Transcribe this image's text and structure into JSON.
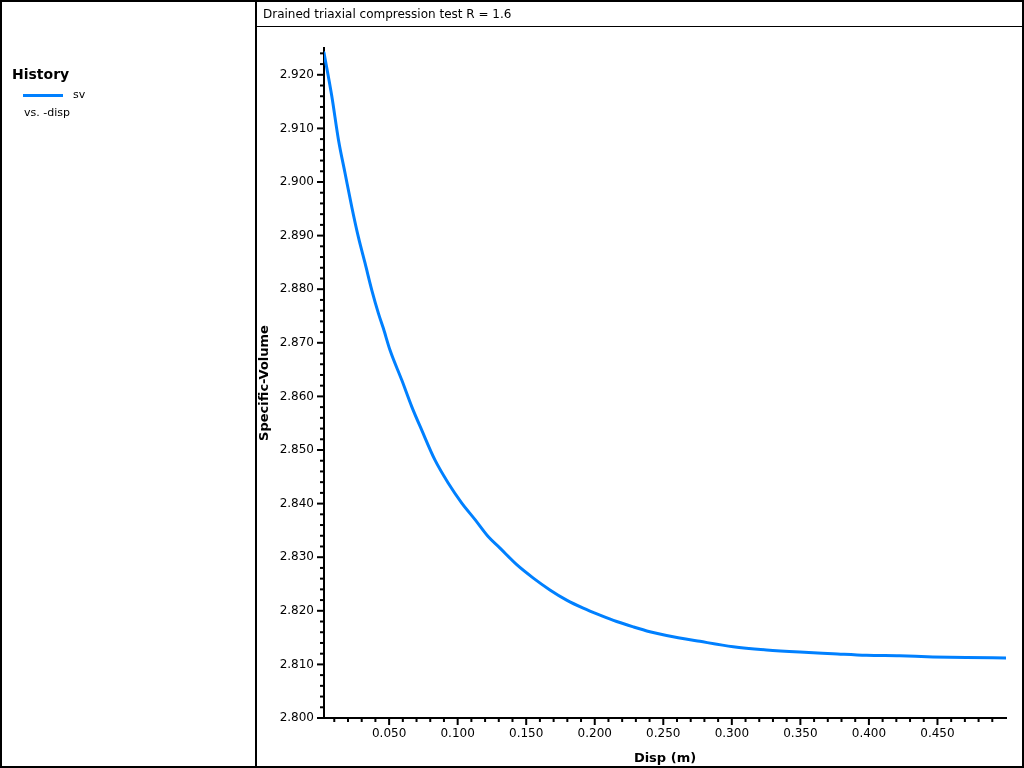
{
  "chart_data": {
    "type": "line",
    "title": "Drained triaxial compression test R = 1.6",
    "xlabel": "Disp (m)",
    "ylabel": "Specific-Volume",
    "legend_title": "History",
    "legend": "left",
    "marker": "none",
    "line_style": "solid",
    "annotations": [
      "vs. -disp"
    ],
    "xlim": [
      0.0025,
      0.5
    ],
    "ylim": [
      2.8,
      2.925
    ],
    "xticks": [
      {
        "value": 0.01,
        "label": null
      },
      {
        "value": 0.02,
        "label": null
      },
      {
        "value": 0.03,
        "label": null
      },
      {
        "value": 0.04,
        "label": null
      },
      {
        "value": 0.05,
        "label": "0.050"
      },
      {
        "value": 0.06,
        "label": null
      },
      {
        "value": 0.07,
        "label": null
      },
      {
        "value": 0.08,
        "label": null
      },
      {
        "value": 0.09,
        "label": null
      },
      {
        "value": 0.1,
        "label": "0.100"
      },
      {
        "value": 0.11,
        "label": null
      },
      {
        "value": 0.12,
        "label": null
      },
      {
        "value": 0.13,
        "label": null
      },
      {
        "value": 0.14,
        "label": null
      },
      {
        "value": 0.15,
        "label": "0.150"
      },
      {
        "value": 0.16,
        "label": null
      },
      {
        "value": 0.17,
        "label": null
      },
      {
        "value": 0.18,
        "label": null
      },
      {
        "value": 0.19,
        "label": null
      },
      {
        "value": 0.2,
        "label": "0.200"
      },
      {
        "value": 0.21,
        "label": null
      },
      {
        "value": 0.22,
        "label": null
      },
      {
        "value": 0.23,
        "label": null
      },
      {
        "value": 0.24,
        "label": null
      },
      {
        "value": 0.25,
        "label": "0.250"
      },
      {
        "value": 0.26,
        "label": null
      },
      {
        "value": 0.27,
        "label": null
      },
      {
        "value": 0.28,
        "label": null
      },
      {
        "value": 0.29,
        "label": null
      },
      {
        "value": 0.3,
        "label": "0.300"
      },
      {
        "value": 0.31,
        "label": null
      },
      {
        "value": 0.32,
        "label": null
      },
      {
        "value": 0.33,
        "label": null
      },
      {
        "value": 0.34,
        "label": null
      },
      {
        "value": 0.35,
        "label": "0.350"
      },
      {
        "value": 0.36,
        "label": null
      },
      {
        "value": 0.37,
        "label": null
      },
      {
        "value": 0.38,
        "label": null
      },
      {
        "value": 0.39,
        "label": null
      },
      {
        "value": 0.4,
        "label": "0.400"
      },
      {
        "value": 0.41,
        "label": null
      },
      {
        "value": 0.42,
        "label": null
      },
      {
        "value": 0.43,
        "label": null
      },
      {
        "value": 0.44,
        "label": null
      },
      {
        "value": 0.45,
        "label": "0.450"
      },
      {
        "value": 0.46,
        "label": null
      },
      {
        "value": 0.47,
        "label": null
      },
      {
        "value": 0.48,
        "label": null
      },
      {
        "value": 0.49,
        "label": null
      }
    ],
    "yticks": [
      {
        "value": 2.8,
        "label": "2.800"
      },
      {
        "value": 2.802,
        "label": null
      },
      {
        "value": 2.804,
        "label": null
      },
      {
        "value": 2.806,
        "label": null
      },
      {
        "value": 2.808,
        "label": null
      },
      {
        "value": 2.81,
        "label": "2.810"
      },
      {
        "value": 2.812,
        "label": null
      },
      {
        "value": 2.814,
        "label": null
      },
      {
        "value": 2.816,
        "label": null
      },
      {
        "value": 2.818,
        "label": null
      },
      {
        "value": 2.82,
        "label": "2.820"
      },
      {
        "value": 2.822,
        "label": null
      },
      {
        "value": 2.824,
        "label": null
      },
      {
        "value": 2.826,
        "label": null
      },
      {
        "value": 2.828,
        "label": null
      },
      {
        "value": 2.83,
        "label": "2.830"
      },
      {
        "value": 2.832,
        "label": null
      },
      {
        "value": 2.834,
        "label": null
      },
      {
        "value": 2.836,
        "label": null
      },
      {
        "value": 2.838,
        "label": null
      },
      {
        "value": 2.84,
        "label": "2.840"
      },
      {
        "value": 2.842,
        "label": null
      },
      {
        "value": 2.844,
        "label": null
      },
      {
        "value": 2.846,
        "label": null
      },
      {
        "value": 2.848,
        "label": null
      },
      {
        "value": 2.85,
        "label": "2.850"
      },
      {
        "value": 2.852,
        "label": null
      },
      {
        "value": 2.854,
        "label": null
      },
      {
        "value": 2.856,
        "label": null
      },
      {
        "value": 2.858,
        "label": null
      },
      {
        "value": 2.86,
        "label": "2.860"
      },
      {
        "value": 2.862,
        "label": null
      },
      {
        "value": 2.864,
        "label": null
      },
      {
        "value": 2.866,
        "label": null
      },
      {
        "value": 2.868,
        "label": null
      },
      {
        "value": 2.87,
        "label": "2.870"
      },
      {
        "value": 2.872,
        "label": null
      },
      {
        "value": 2.874,
        "label": null
      },
      {
        "value": 2.876,
        "label": null
      },
      {
        "value": 2.878,
        "label": null
      },
      {
        "value": 2.88,
        "label": "2.880"
      },
      {
        "value": 2.882,
        "label": null
      },
      {
        "value": 2.884,
        "label": null
      },
      {
        "value": 2.886,
        "label": null
      },
      {
        "value": 2.888,
        "label": null
      },
      {
        "value": 2.89,
        "label": "2.890"
      },
      {
        "value": 2.892,
        "label": null
      },
      {
        "value": 2.894,
        "label": null
      },
      {
        "value": 2.896,
        "label": null
      },
      {
        "value": 2.898,
        "label": null
      },
      {
        "value": 2.9,
        "label": "2.900"
      },
      {
        "value": 2.902,
        "label": null
      },
      {
        "value": 2.904,
        "label": null
      },
      {
        "value": 2.906,
        "label": null
      },
      {
        "value": 2.908,
        "label": null
      },
      {
        "value": 2.91,
        "label": "2.910"
      },
      {
        "value": 2.912,
        "label": null
      },
      {
        "value": 2.914,
        "label": null
      },
      {
        "value": 2.916,
        "label": null
      },
      {
        "value": 2.918,
        "label": null
      },
      {
        "value": 2.92,
        "label": "2.920"
      },
      {
        "value": 2.922,
        "label": null
      },
      {
        "value": 2.924,
        "label": null
      }
    ],
    "x": [
      0.0025,
      0.0082,
      0.0131,
      0.0179,
      0.0228,
      0.0276,
      0.0325,
      0.0374,
      0.0422,
      0.0458,
      0.0507,
      0.0593,
      0.0665,
      0.0738,
      0.0835,
      0.0932,
      0.103,
      0.1127,
      0.1224,
      0.1309,
      0.1431,
      0.1552,
      0.1673,
      0.1795,
      0.1916,
      0.2038,
      0.216,
      0.2281,
      0.2402,
      0.2524,
      0.2767,
      0.301,
      0.3253,
      0.3496,
      0.3738,
      0.3982,
      0.4224,
      0.4467,
      0.4711,
      0.5
    ],
    "series": [
      {
        "name": "sv",
        "color": "#0080ff",
        "values": [
          2.9241,
          2.916,
          2.9078,
          2.9016,
          2.8953,
          2.8897,
          2.8848,
          2.8798,
          2.8755,
          2.8727,
          2.8686,
          2.863,
          2.8581,
          2.8537,
          2.8481,
          2.8438,
          2.8401,
          2.837,
          2.8338,
          2.8317,
          2.8286,
          2.8261,
          2.8239,
          2.822,
          2.8205,
          2.8192,
          2.818,
          2.817,
          2.8161,
          2.8154,
          2.8143,
          2.8133,
          2.8127,
          2.8123,
          2.812,
          2.8117,
          2.8116,
          2.8114,
          2.8113,
          2.8112
        ]
      }
    ]
  }
}
